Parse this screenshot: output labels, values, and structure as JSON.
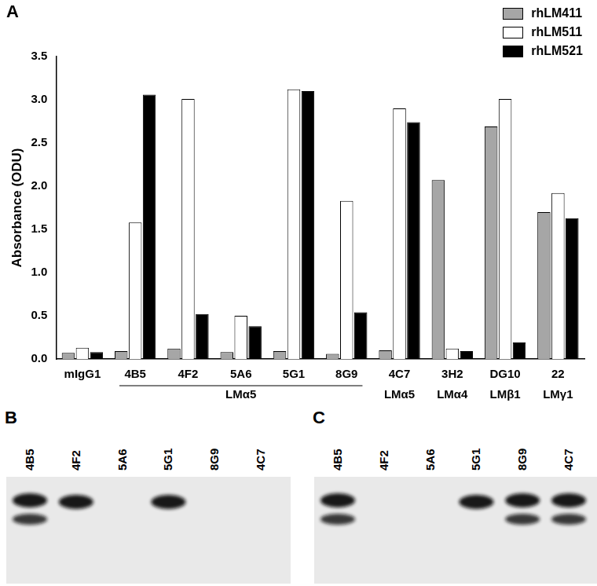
{
  "chart_data": {
    "type": "bar",
    "panel_label": "A",
    "y_label": "Absorbance (ODU)",
    "categories": [
      "mIgG1",
      "4B5",
      "4F2",
      "5A6",
      "5G1",
      "8G9",
      "4C7",
      "3H2",
      "DG10",
      "22"
    ],
    "category_groups": [
      {
        "label": "LMα5",
        "categories": [
          "4B5",
          "4F2",
          "5A6",
          "5G1",
          "8G9"
        ],
        "bracket": true
      },
      {
        "label": "LMα5",
        "categories": [
          "4C7"
        ]
      },
      {
        "label": "LMα4",
        "categories": [
          "3H2"
        ]
      },
      {
        "label": "LMβ1",
        "categories": [
          "DG10"
        ]
      },
      {
        "label": "LMγ1",
        "categories": [
          "22"
        ]
      }
    ],
    "series": [
      {
        "name": "rhLM411",
        "color": "#a6a6a6",
        "values": [
          0.07,
          0.09,
          0.12,
          0.08,
          0.09,
          0.06,
          0.1,
          2.07,
          2.69,
          1.7
        ]
      },
      {
        "name": "rhLM511",
        "color": "#ffffff",
        "values": [
          0.13,
          1.58,
          3.01,
          0.5,
          3.12,
          1.83,
          2.9,
          0.12,
          3.01,
          1.92
        ]
      },
      {
        "name": "rhLM521",
        "color": "#000000",
        "values": [
          0.08,
          3.06,
          0.52,
          0.38,
          3.1,
          0.54,
          2.74,
          0.09,
          0.19,
          1.63
        ]
      }
    ],
    "ylim": [
      0,
      3.5
    ],
    "yticks": [
      {
        "value": 0,
        "label": "0.0"
      },
      0.5,
      {
        "value": 1,
        "label": "1.0"
      },
      1.5,
      {
        "value": 2,
        "label": "2.0"
      },
      2.5,
      {
        "value": 3,
        "label": "3.0"
      },
      3.5
    ],
    "grid": false,
    "legend": "upper right"
  },
  "blots": [
    {
      "panel_label": "B",
      "lanes": [
        "4B5",
        "4F2",
        "5A6",
        "5G1",
        "8G9",
        "4C7"
      ],
      "bands": [
        2,
        1,
        0,
        1,
        0,
        0
      ]
    },
    {
      "panel_label": "C",
      "lanes": [
        "4B5",
        "4F2",
        "5A6",
        "5G1",
        "8G9",
        "4C7"
      ],
      "bands": [
        2,
        0,
        0,
        1,
        2,
        2
      ]
    }
  ]
}
